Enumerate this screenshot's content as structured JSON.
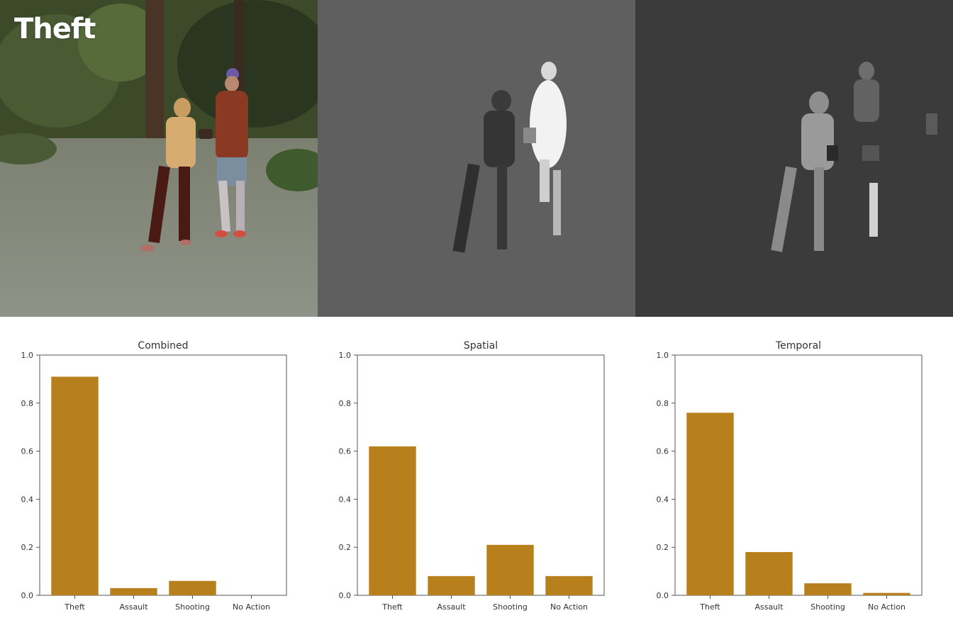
{
  "frame": {
    "label": "Theft"
  },
  "colors": {
    "bar": "#b8801c",
    "axis": "#555555",
    "spatial_bg": "#5f5f5f",
    "temporal_bg": "#3b3b3b"
  },
  "chart_data": [
    {
      "type": "bar",
      "title": "Combined",
      "categories": [
        "Theft",
        "Assault",
        "Shooting",
        "No Action"
      ],
      "values": [
        0.91,
        0.03,
        0.06,
        0.0
      ],
      "ylim": [
        0,
        1.0
      ],
      "yticks": [
        "0.0",
        "0.2",
        "0.4",
        "0.6",
        "0.8",
        "1.0"
      ],
      "grid": false
    },
    {
      "type": "bar",
      "title": "Spatial",
      "categories": [
        "Theft",
        "Assault",
        "Shooting",
        "No Action"
      ],
      "values": [
        0.62,
        0.08,
        0.21,
        0.08
      ],
      "ylim": [
        0,
        1.0
      ],
      "yticks": [
        "0.0",
        "0.2",
        "0.4",
        "0.6",
        "0.8",
        "1.0"
      ],
      "grid": false
    },
    {
      "type": "bar",
      "title": "Temporal",
      "categories": [
        "Theft",
        "Assault",
        "Shooting",
        "No Action"
      ],
      "values": [
        0.76,
        0.18,
        0.05,
        0.01
      ],
      "ylim": [
        0,
        1.0
      ],
      "yticks": [
        "0.0",
        "0.2",
        "0.4",
        "0.6",
        "0.8",
        "1.0"
      ],
      "grid": false
    }
  ]
}
